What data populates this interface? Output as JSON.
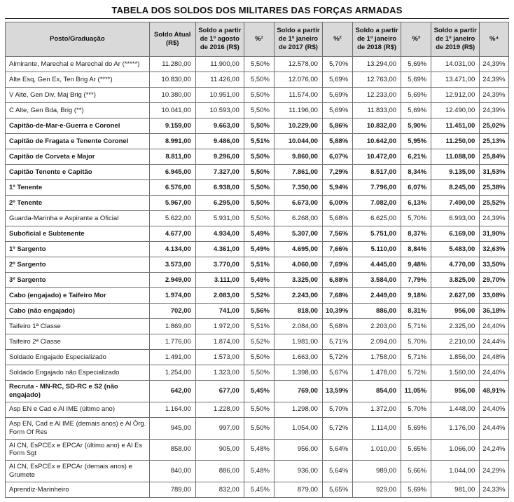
{
  "title": "TABELA DOS SOLDOS DOS MILITARES DAS FORÇAS ARMADAS",
  "table": {
    "headers": [
      "Posto/Graduação",
      "Soldo Atual (R$)",
      "Soldo a partir de 1º agosto de 2016 (R$)",
      "%¹",
      "Soldo a partir de 1º janeiro de 2017 (R$)",
      "%²",
      "Soldo a partir de 1º janeiro de 2018 (R$)",
      "%³",
      "Soldo a partir de 1º janeiro de 2019 (R$)",
      "%⁴"
    ],
    "rows": [
      {
        "bold": false,
        "cells": [
          "Almirante, Marechal e Marechal do Ar (*****)",
          "11.280,00",
          "11.900,00",
          "5,50%",
          "12.578,00",
          "5,70%",
          "13.294,00",
          "5,69%",
          "14.031,00",
          "24,39%"
        ]
      },
      {
        "bold": false,
        "cells": [
          "Alte Esq, Gen Ex, Ten Brig Ar (****)",
          "10.830,00",
          "11.426,00",
          "5,50%",
          "12.076,00",
          "5,69%",
          "12.763,00",
          "5,69%",
          "13.471,00",
          "24,39%"
        ]
      },
      {
        "bold": false,
        "cells": [
          "V Alte, Gen Div, Maj Brig (***)",
          "10.380,00",
          "10.951,00",
          "5,50%",
          "11.574,00",
          "5,69%",
          "12.233,00",
          "5,69%",
          "12.912,00",
          "24,39%"
        ]
      },
      {
        "bold": false,
        "cells": [
          "C Alte, Gen Bda, Brig (**)",
          "10.041,00",
          "10.593,00",
          "5,50%",
          "11.196,00",
          "5,69%",
          "11.833,00",
          "5,69%",
          "12.490,00",
          "24,39%"
        ]
      },
      {
        "bold": true,
        "cells": [
          "Capitão-de-Mar-e-Guerra e Coronel",
          "9.159,00",
          "9.663,00",
          "5,50%",
          "10.229,00",
          "5,86%",
          "10.832,00",
          "5,90%",
          "11.451,00",
          "25,02%"
        ]
      },
      {
        "bold": true,
        "cells": [
          "Capitão de Fragata e Tenente Coronel",
          "8.991,00",
          "9.486,00",
          "5,51%",
          "10.044,00",
          "5,88%",
          "10.642,00",
          "5,95%",
          "11.250,00",
          "25,13%"
        ]
      },
      {
        "bold": true,
        "cells": [
          "Capitão de Corveta e Major",
          "8.811,00",
          "9.296,00",
          "5,50%",
          "9.860,00",
          "6,07%",
          "10.472,00",
          "6,21%",
          "11.088,00",
          "25,84%"
        ]
      },
      {
        "bold": true,
        "cells": [
          "Capitão Tenente e Capitão",
          "6.945,00",
          "7.327,00",
          "5,50%",
          "7.861,00",
          "7,29%",
          "8.517,00",
          "8,34%",
          "9.135,00",
          "31,53%"
        ]
      },
      {
        "bold": true,
        "cells": [
          "1º Tenente",
          "6.576,00",
          "6.938,00",
          "5,50%",
          "7.350,00",
          "5,94%",
          "7.796,00",
          "6,07%",
          "8.245,00",
          "25,38%"
        ]
      },
      {
        "bold": true,
        "cells": [
          "2º Tenente",
          "5.967,00",
          "6.295,00",
          "5,50%",
          "6.673,00",
          "6,00%",
          "7.082,00",
          "6,13%",
          "7.490,00",
          "25,52%"
        ]
      },
      {
        "bold": false,
        "cells": [
          "Guarda-Marinha e Aspirante a Oficial",
          "5.622,00",
          "5.931,00",
          "5,50%",
          "6.268,00",
          "5,68%",
          "6.625,00",
          "5,70%",
          "6.993,00",
          "24,39%"
        ]
      },
      {
        "bold": true,
        "cells": [
          "Suboficial e Subtenente",
          "4.677,00",
          "4.934,00",
          "5,49%",
          "5.307,00",
          "7,56%",
          "5.751,00",
          "8,37%",
          "6.169,00",
          "31,90%"
        ]
      },
      {
        "bold": true,
        "cells": [
          "1º Sargento",
          "4.134,00",
          "4.361,00",
          "5,49%",
          "4.695,00",
          "7,66%",
          "5.110,00",
          "8,84%",
          "5.483,00",
          "32,63%"
        ]
      },
      {
        "bold": true,
        "cells": [
          "2º Sargento",
          "3.573,00",
          "3.770,00",
          "5,51%",
          "4.060,00",
          "7,69%",
          "4.445,00",
          "9,48%",
          "4.770,00",
          "33,50%"
        ]
      },
      {
        "bold": true,
        "cells": [
          "3º Sargento",
          "2.949,00",
          "3.111,00",
          "5,49%",
          "3.325,00",
          "6,88%",
          "3.584,00",
          "7,79%",
          "3.825,00",
          "29,70%"
        ]
      },
      {
        "bold": true,
        "cells": [
          "Cabo (engajado) e Taifeiro Mor",
          "1.974,00",
          "2.083,00",
          "5,52%",
          "2.243,00",
          "7,68%",
          "2.449,00",
          "9,18%",
          "2.627,00",
          "33,08%"
        ]
      },
      {
        "bold": true,
        "cells": [
          "Cabo (não engajado)",
          "702,00",
          "741,00",
          "5,56%",
          "818,00",
          "10,39%",
          "886,00",
          "8,31%",
          "956,00",
          "36,18%"
        ]
      },
      {
        "bold": false,
        "cells": [
          "Taifeiro 1ª Classe",
          "1.869,00",
          "1.972,00",
          "5,51%",
          "2.084,00",
          "5,68%",
          "2.203,00",
          "5,71%",
          "2.325,00",
          "24,40%"
        ]
      },
      {
        "bold": false,
        "cells": [
          "Taifeiro 2ª Classe",
          "1.776,00",
          "1.874,00",
          "5,52%",
          "1.981,00",
          "5,71%",
          "2.094,00",
          "5,70%",
          "2.210,00",
          "24,44%"
        ]
      },
      {
        "bold": false,
        "cells": [
          "Soldado Engajado Especializado",
          "1.491,00",
          "1.573,00",
          "5,50%",
          "1.663,00",
          "5,72%",
          "1.758,00",
          "5,71%",
          "1.856,00",
          "24,48%"
        ]
      },
      {
        "bold": false,
        "cells": [
          "Soldado Engajado não Especializado",
          "1.254,00",
          "1.323,00",
          "5,50%",
          "1.398,00",
          "5,67%",
          "1.478,00",
          "5,72%",
          "1.560,00",
          "24,40%"
        ]
      },
      {
        "bold": true,
        "cells": [
          "Recruta - MN-RC, SD-RC e S2 (não engajado)",
          "642,00",
          "677,00",
          "5,45%",
          "769,00",
          "13,59%",
          "854,00",
          "11,05%",
          "956,00",
          "48,91%"
        ]
      },
      {
        "bold": false,
        "cells": [
          "Asp EN e Cad e Al IME (último ano)",
          "1.164,00",
          "1.228,00",
          "5,50%",
          "1.298,00",
          "5,70%",
          "1.372,00",
          "5,70%",
          "1.448,00",
          "24,40%"
        ]
      },
      {
        "bold": false,
        "cells": [
          "Asp EN, Cad e Al IME (demais anos) e Al Órg. Form Of Res",
          "945,00",
          "997,00",
          "5,50%",
          "1.054,00",
          "5,72%",
          "1.114,00",
          "5,69%",
          "1.176,00",
          "24,44%"
        ]
      },
      {
        "bold": false,
        "cells": [
          "Al CN, EsPCEx e EPCAr (último ano) e Al Es Form Sgt",
          "858,00",
          "905,00",
          "5,48%",
          "956,00",
          "5,64%",
          "1.010,00",
          "5,65%",
          "1.066,00",
          "24,24%"
        ]
      },
      {
        "bold": false,
        "cells": [
          "Al CN, EsPCEx e EPCAr (demais anos) e Grumete",
          "840,00",
          "886,00",
          "5,48%",
          "936,00",
          "5,64%",
          "989,00",
          "5,66%",
          "1.044,00",
          "24,29%"
        ]
      },
      {
        "bold": false,
        "cells": [
          "Aprendiz-Marinheiro",
          "789,00",
          "832,00",
          "5,45%",
          "879,00",
          "5,65%",
          "929,00",
          "5,69%",
          "981,00",
          "24,33%"
        ]
      }
    ]
  },
  "colors": {
    "header_bg": "#d9d9d9",
    "border": "#6e6e6e",
    "text": "#111111"
  }
}
